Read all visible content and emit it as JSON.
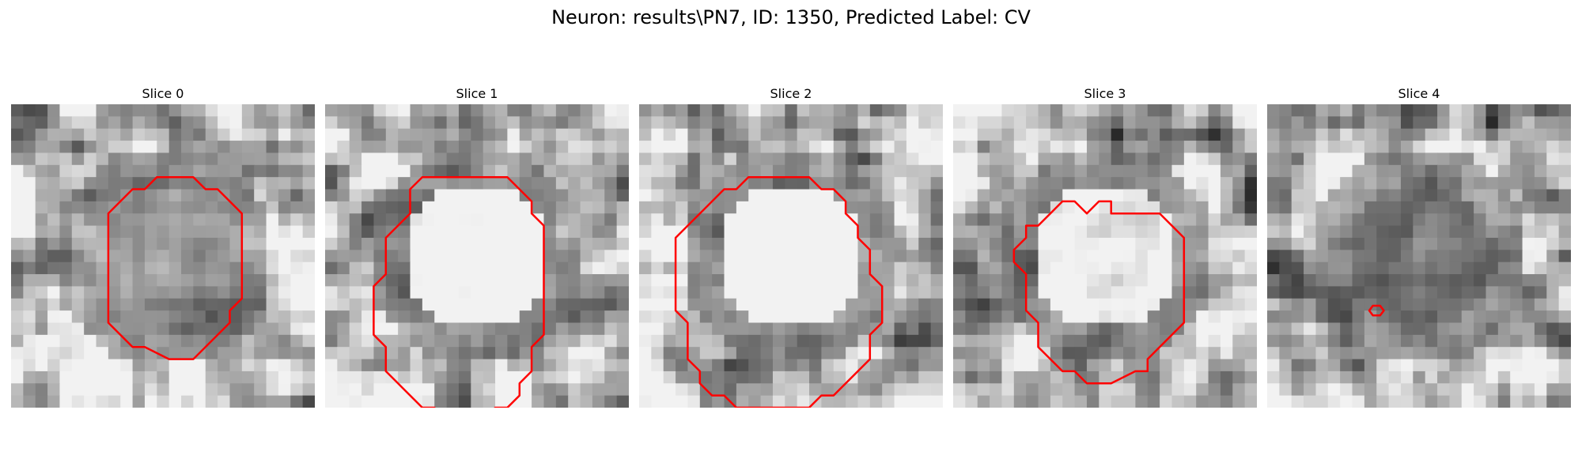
{
  "figure": {
    "title": "Neuron: results\\PN7, ID: 1350, Predicted Label: CV"
  },
  "panels": [
    {
      "title": "Slice 0",
      "seed": 11,
      "center": 0.38,
      "contour": [
        [
          12,
          6
        ],
        [
          15,
          6
        ],
        [
          16,
          7
        ],
        [
          17,
          7
        ],
        [
          19,
          9
        ],
        [
          19,
          16
        ],
        [
          18,
          17
        ],
        [
          18,
          18
        ],
        [
          15,
          21
        ],
        [
          13,
          21
        ],
        [
          11,
          20
        ],
        [
          10,
          20
        ],
        [
          8,
          18
        ],
        [
          8,
          9
        ],
        [
          10,
          7
        ],
        [
          11,
          7
        ]
      ]
    },
    {
      "title": "Slice 1",
      "seed": 23,
      "center": 0.8,
      "contour": [
        [
          9,
          6
        ],
        [
          15,
          6
        ],
        [
          17,
          8
        ],
        [
          17,
          9
        ],
        [
          18,
          10
        ],
        [
          18,
          19
        ],
        [
          17,
          20
        ],
        [
          17,
          22
        ],
        [
          16,
          23
        ],
        [
          16,
          24
        ],
        [
          15,
          25
        ],
        [
          14,
          25
        ],
        [
          13,
          26
        ],
        [
          10,
          26
        ],
        [
          9,
          25
        ],
        [
          8,
          25
        ],
        [
          6,
          23
        ],
        [
          5,
          22
        ],
        [
          5,
          20
        ],
        [
          4,
          19
        ],
        [
          4,
          15
        ],
        [
          5,
          14
        ],
        [
          5,
          11
        ],
        [
          7,
          9
        ],
        [
          7,
          7
        ],
        [
          8,
          6
        ]
      ]
    },
    {
      "title": "Slice 2",
      "seed": 37,
      "center": 0.85,
      "contour": [
        [
          9,
          6
        ],
        [
          14,
          6
        ],
        [
          15,
          7
        ],
        [
          16,
          7
        ],
        [
          17,
          8
        ],
        [
          17,
          9
        ],
        [
          18,
          10
        ],
        [
          18,
          11
        ],
        [
          19,
          12
        ],
        [
          19,
          14
        ],
        [
          20,
          15
        ],
        [
          20,
          18
        ],
        [
          19,
          19
        ],
        [
          19,
          21
        ],
        [
          16,
          24
        ],
        [
          15,
          24
        ],
        [
          14,
          25
        ],
        [
          8,
          25
        ],
        [
          7,
          24
        ],
        [
          6,
          24
        ],
        [
          5,
          23
        ],
        [
          5,
          22
        ],
        [
          4,
          21
        ],
        [
          4,
          18
        ],
        [
          3,
          17
        ],
        [
          3,
          11
        ],
        [
          6,
          8
        ],
        [
          7,
          7
        ],
        [
          8,
          7
        ]
      ]
    },
    {
      "title": "Slice 3",
      "seed": 51,
      "center": 0.7,
      "contour": [
        [
          9,
          8
        ],
        [
          10,
          8
        ],
        [
          11,
          9
        ],
        [
          12,
          8
        ],
        [
          13,
          8
        ],
        [
          13,
          9
        ],
        [
          17,
          9
        ],
        [
          19,
          11
        ],
        [
          19,
          18
        ],
        [
          17,
          20
        ],
        [
          16,
          21
        ],
        [
          16,
          22
        ],
        [
          15,
          22
        ],
        [
          13,
          23
        ],
        [
          11,
          23
        ],
        [
          10,
          22
        ],
        [
          9,
          22
        ],
        [
          7,
          20
        ],
        [
          7,
          18
        ],
        [
          6,
          17
        ],
        [
          6,
          14
        ],
        [
          5,
          13
        ],
        [
          5,
          12
        ],
        [
          6,
          11
        ],
        [
          6,
          10
        ],
        [
          7,
          10
        ],
        [
          8,
          9
        ]
      ]
    },
    {
      "title": "Slice 4",
      "seed": 67,
      "center": 0.25,
      "contour": [
        [
          8.7,
          16.6
        ],
        [
          9.3,
          16.6
        ],
        [
          9.6,
          17
        ],
        [
          9.3,
          17.4
        ],
        [
          8.7,
          17.4
        ],
        [
          8.4,
          17
        ]
      ]
    }
  ],
  "colors": {
    "contour": "#ff0000",
    "background": "#ffffff"
  }
}
